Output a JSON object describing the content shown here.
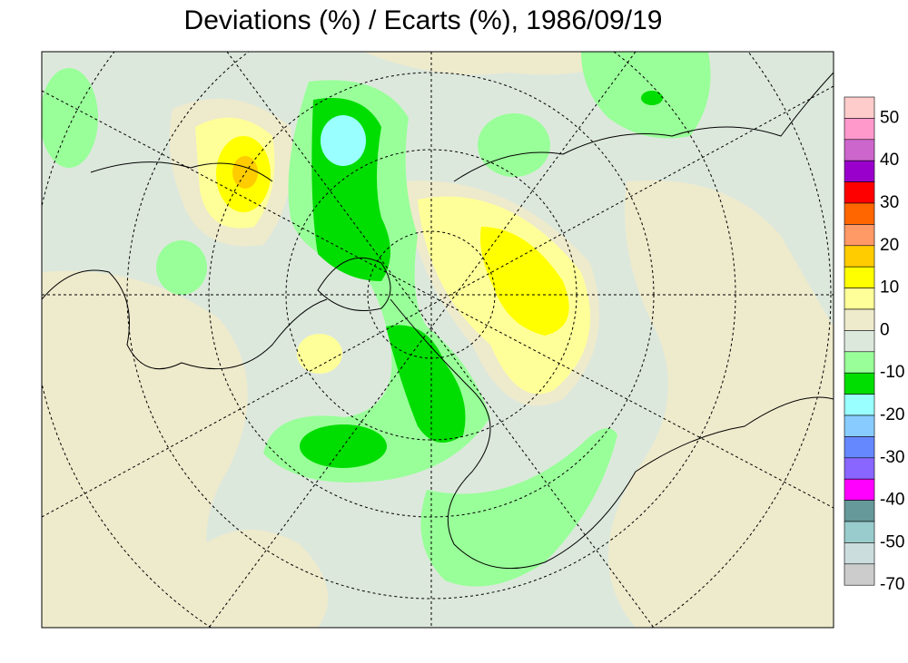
{
  "title": "Deviations (%) / Ecarts (%), 1986/09/19",
  "legend": {
    "colors": [
      "#ffcccc",
      "#ff99cc",
      "#cc66cc",
      "#9900cc",
      "#ff0000",
      "#ff6600",
      "#ff9966",
      "#ffcc00",
      "#ffff00",
      "#ffff99",
      "#eeeacc",
      "#dde8dd",
      "#99ff99",
      "#00dd00",
      "#99ffff",
      "#88ccff",
      "#6688ff",
      "#8866ff",
      "#ff00ff",
      "#669999",
      "#99cccc",
      "#ccdddd",
      "#cccccc"
    ],
    "labels": [
      50,
      40,
      30,
      20,
      10,
      0,
      -10,
      -20,
      -30,
      -40,
      -50,
      -70
    ]
  }
}
